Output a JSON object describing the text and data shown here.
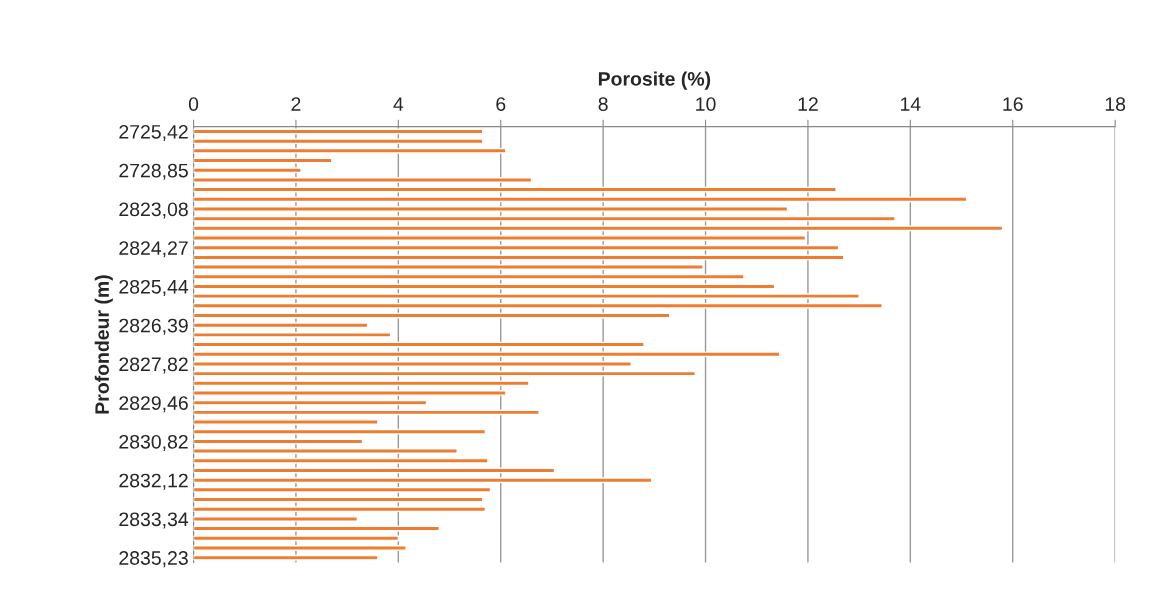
{
  "chart_data": {
    "type": "bar",
    "orientation": "horizontal",
    "xlabel": "Porosite (%)",
    "ylabel": "Profondeur (m)",
    "color": "#ed7d31",
    "categories": [
      "2725,42",
      null,
      null,
      null,
      "2728,85",
      null,
      null,
      null,
      "2823,08",
      null,
      null,
      null,
      "2824,27",
      null,
      null,
      null,
      "2825,44",
      null,
      null,
      null,
      "2826,39",
      null,
      null,
      null,
      "2827,82",
      null,
      null,
      null,
      "2829,46",
      null,
      null,
      null,
      "2830,82",
      null,
      null,
      null,
      "2832,12",
      null,
      null,
      null,
      "2833,34",
      null,
      null,
      null,
      "2835,23"
    ],
    "values": [
      5.65,
      5.65,
      6.1,
      2.7,
      2.1,
      6.6,
      12.55,
      15.1,
      11.6,
      13.7,
      15.8,
      11.95,
      12.6,
      12.7,
      9.95,
      10.75,
      11.35,
      13.0,
      13.45,
      9.3,
      3.4,
      3.85,
      8.8,
      11.45,
      8.55,
      9.8,
      6.55,
      6.1,
      4.55,
      6.75,
      3.6,
      5.7,
      3.3,
      5.15,
      5.75,
      7.05,
      8.95,
      5.8,
      5.65,
      5.7,
      3.2,
      4.8,
      4.0,
      4.15,
      3.6
    ],
    "xlim": [
      0,
      18
    ],
    "xticks": [
      0,
      2,
      4,
      6,
      8,
      10,
      12,
      14,
      16,
      18
    ],
    "grid": "x"
  }
}
